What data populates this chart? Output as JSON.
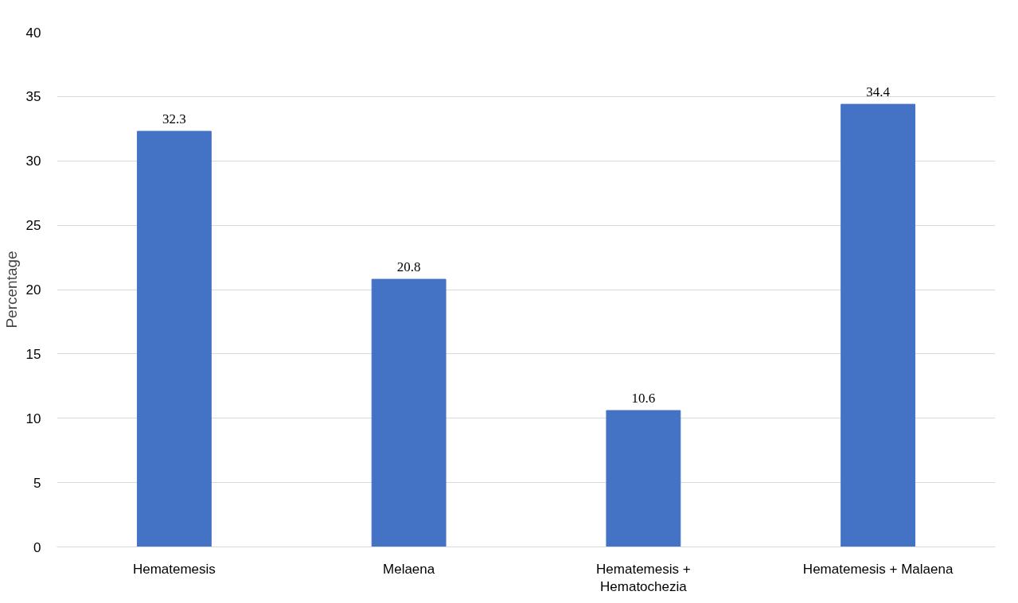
{
  "chart_data": {
    "type": "bar",
    "ylabel": "Percentage",
    "categories": [
      "Hematemesis",
      "Melaena",
      "Hematemesis + Hematochezia",
      "Hematemesis + Malaena"
    ],
    "values": [
      32.3,
      20.8,
      10.6,
      34.4
    ],
    "color": "#4472c4",
    "ylim": [
      0,
      40
    ],
    "yticks": [
      0,
      5,
      10,
      15,
      20,
      25,
      30,
      35,
      40
    ],
    "grid": "y",
    "data_labels": true
  }
}
